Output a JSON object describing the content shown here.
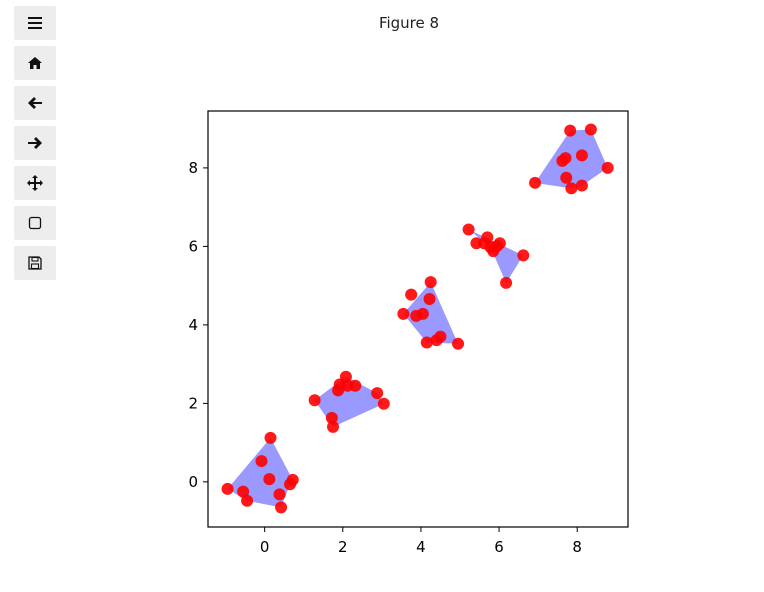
{
  "figure": {
    "title": "Figure 8"
  },
  "toolbar": {
    "buttons": [
      {
        "name": "menu-button",
        "icon": "menu-icon"
      },
      {
        "name": "home-button",
        "icon": "home-icon"
      },
      {
        "name": "back-button",
        "icon": "arrow-left-icon"
      },
      {
        "name": "forward-button",
        "icon": "arrow-right-icon"
      },
      {
        "name": "pan-button",
        "icon": "move-icon"
      },
      {
        "name": "zoom-button",
        "icon": "zoom-rect-icon"
      },
      {
        "name": "save-button",
        "icon": "save-icon"
      }
    ]
  },
  "chart_data": {
    "type": "scatter",
    "title": "",
    "xlabel": "",
    "ylabel": "",
    "xlim": [
      -1.45,
      9.3
    ],
    "ylim": [
      -1.15,
      9.45
    ],
    "xticks": [
      0,
      2,
      4,
      6,
      8
    ],
    "yticks": [
      0,
      2,
      4,
      6,
      8
    ],
    "grid": false,
    "point_color": "#ff0000",
    "hull_color": "#0000ff",
    "hull_alpha": 0.4,
    "clusters": [
      {
        "points": [
          [
            -0.95,
            -0.18
          ],
          [
            -0.55,
            -0.25
          ],
          [
            -0.45,
            -0.48
          ],
          [
            -0.08,
            0.53
          ],
          [
            0.12,
            0.07
          ],
          [
            0.15,
            1.12
          ],
          [
            0.38,
            -0.32
          ],
          [
            0.42,
            -0.65
          ],
          [
            0.65,
            -0.06
          ],
          [
            0.72,
            0.05
          ]
        ],
        "hull": [
          [
            -0.95,
            -0.18
          ],
          [
            0.15,
            1.12
          ],
          [
            0.72,
            0.05
          ],
          [
            0.65,
            -0.06
          ],
          [
            0.42,
            -0.65
          ],
          [
            -0.45,
            -0.48
          ]
        ]
      },
      {
        "points": [
          [
            1.28,
            2.08
          ],
          [
            1.72,
            1.63
          ],
          [
            1.75,
            1.4
          ],
          [
            1.88,
            2.33
          ],
          [
            1.92,
            2.48
          ],
          [
            2.08,
            2.68
          ],
          [
            2.12,
            2.45
          ],
          [
            2.32,
            2.45
          ],
          [
            2.88,
            2.26
          ],
          [
            3.05,
            1.99
          ]
        ],
        "hull": [
          [
            1.28,
            2.08
          ],
          [
            2.08,
            2.68
          ],
          [
            2.88,
            2.26
          ],
          [
            3.05,
            1.99
          ],
          [
            1.75,
            1.4
          ]
        ]
      },
      {
        "points": [
          [
            3.55,
            4.28
          ],
          [
            3.75,
            4.77
          ],
          [
            3.88,
            4.23
          ],
          [
            4.05,
            4.28
          ],
          [
            4.15,
            3.55
          ],
          [
            4.22,
            4.66
          ],
          [
            4.25,
            5.09
          ],
          [
            4.4,
            3.61
          ],
          [
            4.5,
            3.7
          ],
          [
            4.95,
            3.52
          ]
        ],
        "hull": [
          [
            3.55,
            4.28
          ],
          [
            4.25,
            5.09
          ],
          [
            4.95,
            3.52
          ],
          [
            4.15,
            3.55
          ]
        ]
      },
      {
        "points": [
          [
            5.22,
            6.43
          ],
          [
            5.42,
            6.08
          ],
          [
            5.62,
            6.08
          ],
          [
            5.7,
            6.23
          ],
          [
            5.78,
            5.98
          ],
          [
            5.85,
            5.88
          ],
          [
            5.95,
            6.01
          ],
          [
            6.02,
            6.08
          ],
          [
            6.18,
            5.07
          ],
          [
            6.62,
            5.77
          ]
        ],
        "hull": [
          [
            5.22,
            6.43
          ],
          [
            6.62,
            5.77
          ],
          [
            6.18,
            5.07
          ],
          [
            5.78,
            5.98
          ]
        ]
      },
      {
        "points": [
          [
            6.92,
            7.62
          ],
          [
            7.62,
            8.18
          ],
          [
            7.7,
            8.25
          ],
          [
            7.72,
            7.75
          ],
          [
            7.82,
            8.95
          ],
          [
            7.85,
            7.48
          ],
          [
            8.12,
            7.55
          ],
          [
            8.12,
            8.32
          ],
          [
            8.35,
            8.98
          ],
          [
            8.78,
            8.0
          ]
        ],
        "hull": [
          [
            6.92,
            7.62
          ],
          [
            7.82,
            8.95
          ],
          [
            8.35,
            8.98
          ],
          [
            8.78,
            8.0
          ],
          [
            8.12,
            7.55
          ],
          [
            7.85,
            7.48
          ]
        ]
      }
    ]
  }
}
